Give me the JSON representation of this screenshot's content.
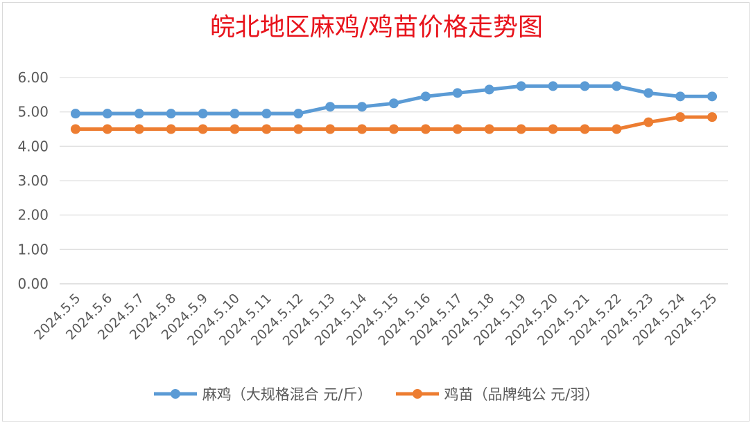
{
  "chart_data": {
    "type": "line",
    "title": "皖北地区麻鸡/鸡苗价格走势图",
    "categories": [
      "2024.5.5",
      "2024.5.6",
      "2024.5.7",
      "2024.5.8",
      "2024.5.9",
      "2024.5.10",
      "2024.5.11",
      "2024.5.12",
      "2024.5.13",
      "2024.5.14",
      "2024.5.15",
      "2024.5.16",
      "2024.5.17",
      "2024.5.18",
      "2024.5.19",
      "2024.5.20",
      "2024.5.21",
      "2024.5.22",
      "2024.5.23",
      "2024.5.24",
      "2024.5.25"
    ],
    "series": [
      {
        "name": "麻鸡（大规格混合 元/斤）",
        "color": "#5b9bd5",
        "values": [
          4.95,
          4.95,
          4.95,
          4.95,
          4.95,
          4.95,
          4.95,
          4.95,
          5.15,
          5.15,
          5.25,
          5.45,
          5.55,
          5.65,
          5.75,
          5.75,
          5.75,
          5.75,
          5.55,
          5.45,
          5.45
        ]
      },
      {
        "name": "鸡苗（品牌纯公 元/羽）",
        "color": "#ed7d31",
        "values": [
          4.5,
          4.5,
          4.5,
          4.5,
          4.5,
          4.5,
          4.5,
          4.5,
          4.5,
          4.5,
          4.5,
          4.5,
          4.5,
          4.5,
          4.5,
          4.5,
          4.5,
          4.5,
          4.7,
          4.85,
          4.85
        ]
      }
    ],
    "ylim": [
      0,
      6
    ],
    "yticks": [
      "0.00",
      "1.00",
      "2.00",
      "3.00",
      "4.00",
      "5.00",
      "6.00"
    ],
    "grid": true,
    "legend_position": "bottom"
  }
}
